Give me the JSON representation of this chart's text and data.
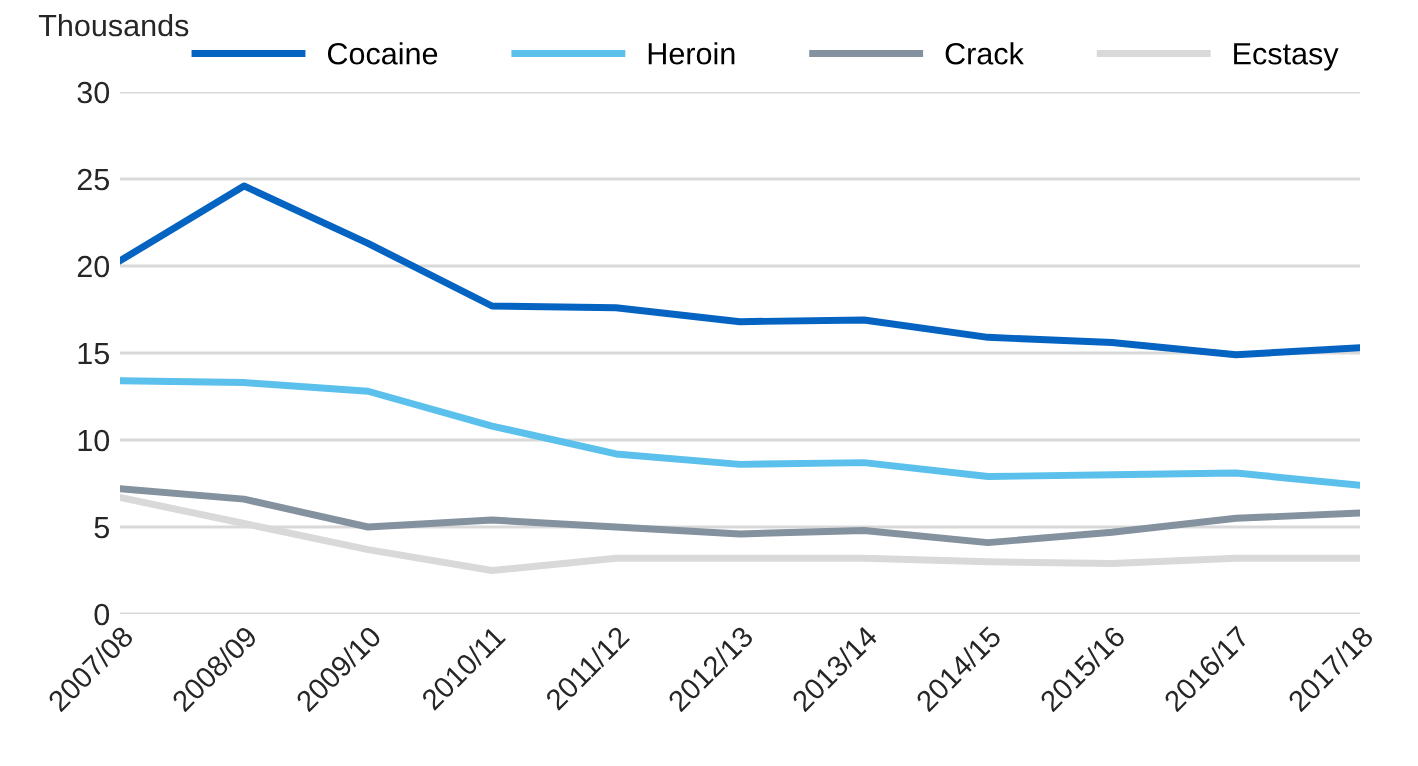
{
  "chart_data": {
    "type": "line",
    "ylabel": "Thousands",
    "categories": [
      "2007/08",
      "2008/09",
      "2009/10",
      "2010/11",
      "2011/12",
      "2012/13",
      "2013/14",
      "2014/15",
      "2015/16",
      "2016/17",
      "2017/18"
    ],
    "series": [
      {
        "name": "Cocaine",
        "color": "#0563c1",
        "values": [
          20.3,
          24.6,
          21.3,
          17.7,
          17.6,
          16.8,
          16.9,
          15.9,
          15.6,
          14.9,
          15.3
        ]
      },
      {
        "name": "Heroin",
        "color": "#5bc0eb",
        "values": [
          13.4,
          13.3,
          12.8,
          10.8,
          9.2,
          8.6,
          8.7,
          7.9,
          8.0,
          8.1,
          7.4
        ]
      },
      {
        "name": "Crack",
        "color": "#84919e",
        "values": [
          7.2,
          6.6,
          5.0,
          5.4,
          5.0,
          4.6,
          4.8,
          4.1,
          4.7,
          5.5,
          5.8
        ]
      },
      {
        "name": "Ecstasy",
        "color": "#d9d9d9",
        "values": [
          6.7,
          5.2,
          3.7,
          2.5,
          3.2,
          3.2,
          3.2,
          3.0,
          2.9,
          3.2,
          3.2
        ]
      }
    ],
    "ylim": [
      0,
      30
    ],
    "yticks": [
      0,
      5,
      10,
      15,
      20,
      25,
      30
    ],
    "grid": "y",
    "legend": "top right",
    "marker": "none",
    "line_style": "solid"
  }
}
